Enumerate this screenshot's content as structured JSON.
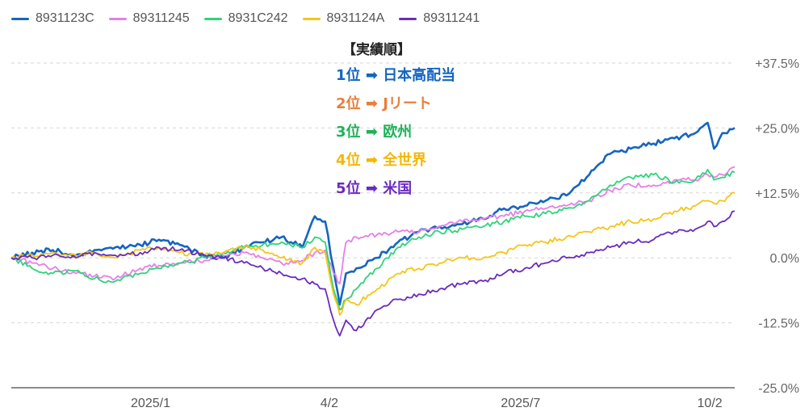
{
  "chart_data": {
    "type": "line",
    "title": "",
    "xlabel": "",
    "ylabel": "",
    "ylim": [
      -25,
      37.5
    ],
    "y_ticks": [
      "+37.5%",
      "+25.0%",
      "+12.5%",
      "0.0%",
      "-12.5%",
      "-25.0%"
    ],
    "x_ticks": [
      "2025/1",
      "4/2",
      "2025/7",
      "10/2"
    ],
    "x_range": [
      "2024-10-31",
      "2025-10-14"
    ],
    "grid": true,
    "legend_position": "top-left",
    "series": [
      {
        "name": "8931123C",
        "color": "#1565C0",
        "points": [
          [
            "2024-10-31",
            0
          ],
          [
            "2024-11-10",
            1
          ],
          [
            "2024-11-20",
            1.5
          ],
          [
            "2024-12-01",
            0.5
          ],
          [
            "2024-12-10",
            1.5
          ],
          [
            "2024-12-20",
            2
          ],
          [
            "2025-01-01",
            2.5
          ],
          [
            "2025-01-10",
            3.5
          ],
          [
            "2025-01-20",
            2.5
          ],
          [
            "2025-02-01",
            0.5
          ],
          [
            "2025-02-10",
            0
          ],
          [
            "2025-02-20",
            2
          ],
          [
            "2025-03-01",
            3
          ],
          [
            "2025-03-10",
            4
          ],
          [
            "2025-03-20",
            2
          ],
          [
            "2025-03-26",
            8
          ],
          [
            "2025-03-31",
            7
          ],
          [
            "2025-04-04",
            -2
          ],
          [
            "2025-04-07",
            -9
          ],
          [
            "2025-04-10",
            -3
          ],
          [
            "2025-04-15",
            -2
          ],
          [
            "2025-04-25",
            0
          ],
          [
            "2025-05-05",
            3
          ],
          [
            "2025-05-15",
            5
          ],
          [
            "2025-05-25",
            6
          ],
          [
            "2025-06-05",
            6.5
          ],
          [
            "2025-06-15",
            7.5
          ],
          [
            "2025-06-25",
            9.5
          ],
          [
            "2025-07-05",
            10
          ],
          [
            "2025-07-15",
            11
          ],
          [
            "2025-07-25",
            12
          ],
          [
            "2025-08-05",
            16
          ],
          [
            "2025-08-15",
            20
          ],
          [
            "2025-08-25",
            21
          ],
          [
            "2025-09-05",
            22
          ],
          [
            "2025-09-15",
            23
          ],
          [
            "2025-09-25",
            24
          ],
          [
            "2025-10-01",
            26
          ],
          [
            "2025-10-04",
            21
          ],
          [
            "2025-10-08",
            24
          ],
          [
            "2025-10-14",
            25
          ]
        ]
      },
      {
        "name": "89311245",
        "color": "#E87EE8",
        "points": [
          [
            "2024-10-31",
            0
          ],
          [
            "2024-11-10",
            -1
          ],
          [
            "2024-11-20",
            -2
          ],
          [
            "2024-12-01",
            -3
          ],
          [
            "2024-12-10",
            -3.5
          ],
          [
            "2024-12-20",
            -4
          ],
          [
            "2025-01-01",
            -2
          ],
          [
            "2025-01-10",
            -1.5
          ],
          [
            "2025-01-20",
            -1
          ],
          [
            "2025-02-01",
            -0.5
          ],
          [
            "2025-02-10",
            0.5
          ],
          [
            "2025-02-20",
            1
          ],
          [
            "2025-03-01",
            0
          ],
          [
            "2025-03-10",
            -1
          ],
          [
            "2025-03-20",
            -0.5
          ],
          [
            "2025-03-26",
            1
          ],
          [
            "2025-03-31",
            1.5
          ],
          [
            "2025-04-04",
            -3
          ],
          [
            "2025-04-07",
            -5
          ],
          [
            "2025-04-10",
            3
          ],
          [
            "2025-04-15",
            4
          ],
          [
            "2025-04-25",
            4.5
          ],
          [
            "2025-05-05",
            5
          ],
          [
            "2025-05-15",
            5
          ],
          [
            "2025-05-25",
            6
          ],
          [
            "2025-06-05",
            7
          ],
          [
            "2025-06-15",
            7.5
          ],
          [
            "2025-06-25",
            8
          ],
          [
            "2025-07-05",
            9
          ],
          [
            "2025-07-15",
            9.5
          ],
          [
            "2025-07-25",
            10
          ],
          [
            "2025-08-05",
            11
          ],
          [
            "2025-08-15",
            13
          ],
          [
            "2025-08-25",
            14
          ],
          [
            "2025-09-05",
            14
          ],
          [
            "2025-09-15",
            15
          ],
          [
            "2025-09-25",
            15
          ],
          [
            "2025-10-01",
            16
          ],
          [
            "2025-10-04",
            15.5
          ],
          [
            "2025-10-08",
            16
          ],
          [
            "2025-10-14",
            17.5
          ]
        ]
      },
      {
        "name": "8931C242",
        "color": "#2ED47A",
        "points": [
          [
            "2024-10-31",
            0
          ],
          [
            "2024-11-10",
            -2
          ],
          [
            "2024-11-20",
            -3
          ],
          [
            "2024-12-01",
            -2.5
          ],
          [
            "2024-12-10",
            -4
          ],
          [
            "2024-12-20",
            -4.5
          ],
          [
            "2025-01-01",
            -3
          ],
          [
            "2025-01-10",
            -2
          ],
          [
            "2025-01-20",
            -1
          ],
          [
            "2025-02-01",
            0
          ],
          [
            "2025-02-10",
            1
          ],
          [
            "2025-02-20",
            2
          ],
          [
            "2025-03-01",
            2.5
          ],
          [
            "2025-03-10",
            3
          ],
          [
            "2025-03-20",
            2
          ],
          [
            "2025-03-26",
            4
          ],
          [
            "2025-03-31",
            3
          ],
          [
            "2025-04-04",
            -6
          ],
          [
            "2025-04-07",
            -10
          ],
          [
            "2025-04-10",
            -8
          ],
          [
            "2025-04-15",
            -6
          ],
          [
            "2025-04-25",
            -2
          ],
          [
            "2025-05-05",
            2
          ],
          [
            "2025-05-15",
            4
          ],
          [
            "2025-05-25",
            5
          ],
          [
            "2025-06-05",
            5.5
          ],
          [
            "2025-06-15",
            6
          ],
          [
            "2025-06-25",
            7
          ],
          [
            "2025-07-05",
            8
          ],
          [
            "2025-07-15",
            8.5
          ],
          [
            "2025-07-25",
            9.5
          ],
          [
            "2025-08-05",
            11
          ],
          [
            "2025-08-15",
            14
          ],
          [
            "2025-08-25",
            15.5
          ],
          [
            "2025-09-05",
            16
          ],
          [
            "2025-09-15",
            14.5
          ],
          [
            "2025-09-25",
            15
          ],
          [
            "2025-10-01",
            17
          ],
          [
            "2025-10-04",
            15
          ],
          [
            "2025-10-08",
            15.5
          ],
          [
            "2025-10-14",
            16.5
          ]
        ]
      },
      {
        "name": "8931124A",
        "color": "#F5C518",
        "points": [
          [
            "2024-10-31",
            0
          ],
          [
            "2024-11-10",
            0.5
          ],
          [
            "2024-11-20",
            1
          ],
          [
            "2024-12-01",
            0.5
          ],
          [
            "2024-12-10",
            1
          ],
          [
            "2024-12-20",
            0
          ],
          [
            "2025-01-01",
            1.5
          ],
          [
            "2025-01-10",
            2
          ],
          [
            "2025-01-20",
            1
          ],
          [
            "2025-02-01",
            0.5
          ],
          [
            "2025-02-10",
            1
          ],
          [
            "2025-02-20",
            2
          ],
          [
            "2025-03-01",
            1.5
          ],
          [
            "2025-03-10",
            0
          ],
          [
            "2025-03-20",
            -1
          ],
          [
            "2025-03-26",
            2
          ],
          [
            "2025-03-31",
            1
          ],
          [
            "2025-04-04",
            -7
          ],
          [
            "2025-04-07",
            -11
          ],
          [
            "2025-04-10",
            -8
          ],
          [
            "2025-04-15",
            -9
          ],
          [
            "2025-04-25",
            -6
          ],
          [
            "2025-05-05",
            -3
          ],
          [
            "2025-05-15",
            -2
          ],
          [
            "2025-05-25",
            -1
          ],
          [
            "2025-06-05",
            0
          ],
          [
            "2025-06-15",
            0
          ],
          [
            "2025-06-25",
            1
          ],
          [
            "2025-07-05",
            2.5
          ],
          [
            "2025-07-15",
            3
          ],
          [
            "2025-07-25",
            4
          ],
          [
            "2025-08-05",
            5
          ],
          [
            "2025-08-15",
            6
          ],
          [
            "2025-08-25",
            7
          ],
          [
            "2025-09-05",
            7.5
          ],
          [
            "2025-09-15",
            9
          ],
          [
            "2025-09-25",
            10
          ],
          [
            "2025-10-01",
            11
          ],
          [
            "2025-10-04",
            10.5
          ],
          [
            "2025-10-08",
            11
          ],
          [
            "2025-10-14",
            12.5
          ]
        ]
      },
      {
        "name": "89311241",
        "color": "#6A2BC0",
        "points": [
          [
            "2024-10-31",
            0
          ],
          [
            "2024-11-10",
            0
          ],
          [
            "2024-11-20",
            0.5
          ],
          [
            "2024-12-01",
            0
          ],
          [
            "2024-12-10",
            1
          ],
          [
            "2024-12-20",
            0.5
          ],
          [
            "2025-01-01",
            1
          ],
          [
            "2025-01-10",
            2
          ],
          [
            "2025-01-20",
            1.5
          ],
          [
            "2025-02-01",
            0.5
          ],
          [
            "2025-02-10",
            0
          ],
          [
            "2025-02-20",
            -1
          ],
          [
            "2025-03-01",
            -2
          ],
          [
            "2025-03-10",
            -3
          ],
          [
            "2025-03-20",
            -4
          ],
          [
            "2025-03-26",
            -5
          ],
          [
            "2025-03-31",
            -6
          ],
          [
            "2025-04-04",
            -12
          ],
          [
            "2025-04-07",
            -15
          ],
          [
            "2025-04-10",
            -12
          ],
          [
            "2025-04-15",
            -14
          ],
          [
            "2025-04-25",
            -10
          ],
          [
            "2025-05-05",
            -8
          ],
          [
            "2025-05-15",
            -7
          ],
          [
            "2025-05-25",
            -6
          ],
          [
            "2025-06-05",
            -5
          ],
          [
            "2025-06-15",
            -4.5
          ],
          [
            "2025-06-25",
            -3
          ],
          [
            "2025-07-05",
            -2
          ],
          [
            "2025-07-15",
            -1
          ],
          [
            "2025-07-25",
            0
          ],
          [
            "2025-08-05",
            1
          ],
          [
            "2025-08-15",
            2
          ],
          [
            "2025-08-25",
            3
          ],
          [
            "2025-09-05",
            3.5
          ],
          [
            "2025-09-15",
            5
          ],
          [
            "2025-09-25",
            5.5
          ],
          [
            "2025-10-01",
            7
          ],
          [
            "2025-10-04",
            6
          ],
          [
            "2025-10-08",
            7
          ],
          [
            "2025-10-14",
            9
          ]
        ]
      }
    ],
    "annotation": {
      "title": "【実績順】",
      "rows": [
        {
          "rank": "1位",
          "arrow": "➡",
          "label": "日本高配当",
          "color": "#1565C0"
        },
        {
          "rank": "2位",
          "arrow": "➡",
          "label": "Jリート",
          "color": "#E8803A"
        },
        {
          "rank": "3位",
          "arrow": "➡",
          "label": "欧州",
          "color": "#1FB25A"
        },
        {
          "rank": "4位",
          "arrow": "➡",
          "label": "全世界",
          "color": "#F2B705"
        },
        {
          "rank": "5位",
          "arrow": "➡",
          "label": "米国",
          "color": "#6A2BC0"
        }
      ]
    }
  }
}
